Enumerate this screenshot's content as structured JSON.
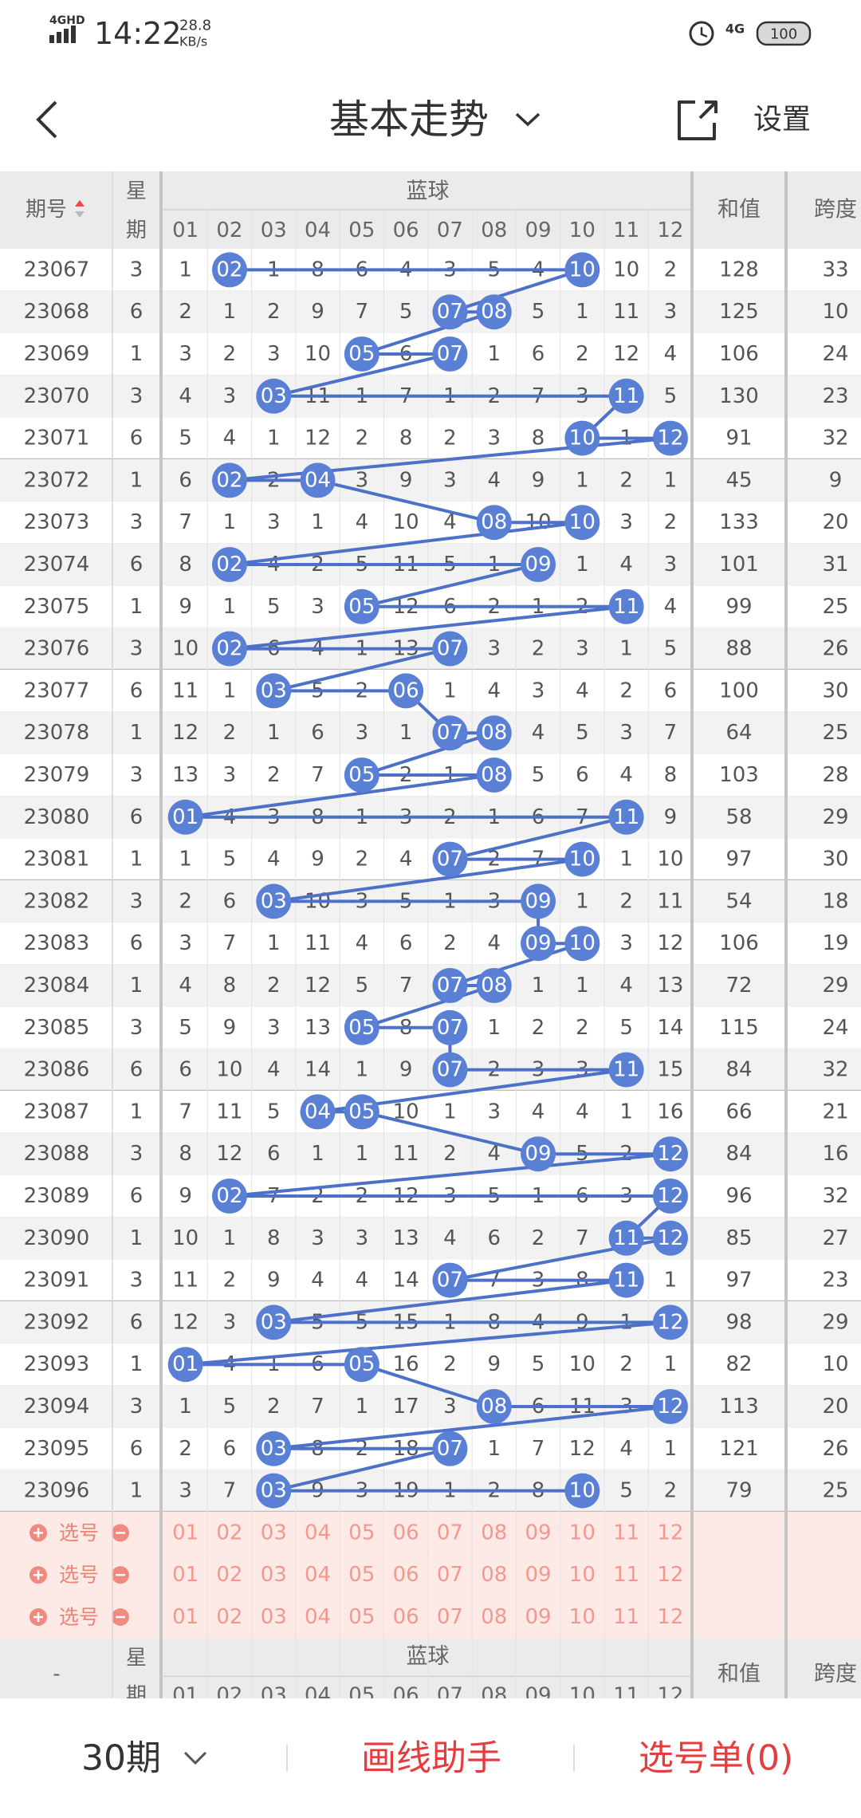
{
  "status_bar": {
    "network": "4GHD",
    "time": "14:22",
    "speed": "28.8",
    "speed_unit": "KB/s",
    "network_right": "4G",
    "battery": "100"
  },
  "header": {
    "title": "基本走势",
    "settings": "设置"
  },
  "table": {
    "header": {
      "period": "期号",
      "weekday": [
        "星",
        "期"
      ],
      "blue": "蓝球",
      "sum": "和值",
      "span": "跨度"
    },
    "ball_columns": [
      "01",
      "02",
      "03",
      "04",
      "05",
      "06",
      "07",
      "08",
      "09",
      "10",
      "11",
      "12"
    ],
    "rows": [
      {
        "period": "23067",
        "weekday": 3,
        "cells": [
          1,
          "02",
          1,
          8,
          6,
          4,
          3,
          5,
          4,
          "10",
          10,
          2
        ],
        "sum": 128,
        "span": 33
      },
      {
        "period": "23068",
        "weekday": 6,
        "cells": [
          2,
          1,
          2,
          9,
          7,
          5,
          "07",
          "08",
          5,
          1,
          11,
          3
        ],
        "sum": 125,
        "span": 10
      },
      {
        "period": "23069",
        "weekday": 1,
        "cells": [
          3,
          2,
          3,
          10,
          "05",
          6,
          "07",
          1,
          6,
          2,
          12,
          4
        ],
        "sum": 106,
        "span": 24
      },
      {
        "period": "23070",
        "weekday": 3,
        "cells": [
          4,
          3,
          "03",
          11,
          1,
          7,
          1,
          2,
          7,
          3,
          "11",
          5
        ],
        "sum": 130,
        "span": 23
      },
      {
        "period": "23071",
        "weekday": 6,
        "cells": [
          5,
          4,
          1,
          12,
          2,
          8,
          2,
          3,
          8,
          "10",
          1,
          "12"
        ],
        "sum": 91,
        "span": 32
      },
      {
        "period": "23072",
        "weekday": 1,
        "cells": [
          6,
          "02",
          2,
          "04",
          3,
          9,
          3,
          4,
          9,
          1,
          2,
          1
        ],
        "sum": 45,
        "span": 9
      },
      {
        "period": "23073",
        "weekday": 3,
        "cells": [
          7,
          1,
          3,
          1,
          4,
          10,
          4,
          "08",
          10,
          "10",
          3,
          2
        ],
        "sum": 133,
        "span": 20
      },
      {
        "period": "23074",
        "weekday": 6,
        "cells": [
          8,
          "02",
          4,
          2,
          5,
          11,
          5,
          1,
          "09",
          1,
          4,
          3
        ],
        "sum": 101,
        "span": 31
      },
      {
        "period": "23075",
        "weekday": 1,
        "cells": [
          9,
          1,
          5,
          3,
          "05",
          12,
          6,
          2,
          1,
          2,
          "11",
          4
        ],
        "sum": 99,
        "span": 25
      },
      {
        "period": "23076",
        "weekday": 3,
        "cells": [
          10,
          "02",
          6,
          4,
          1,
          13,
          "07",
          3,
          2,
          3,
          1,
          5
        ],
        "sum": 88,
        "span": 26
      },
      {
        "period": "23077",
        "weekday": 6,
        "cells": [
          11,
          1,
          "03",
          5,
          2,
          "06",
          1,
          4,
          3,
          4,
          2,
          6
        ],
        "sum": 100,
        "span": 30
      },
      {
        "period": "23078",
        "weekday": 1,
        "cells": [
          12,
          2,
          1,
          6,
          3,
          1,
          "07",
          "08",
          4,
          5,
          3,
          7
        ],
        "sum": 64,
        "span": 25
      },
      {
        "period": "23079",
        "weekday": 3,
        "cells": [
          13,
          3,
          2,
          7,
          "05",
          2,
          1,
          "08",
          5,
          6,
          4,
          8
        ],
        "sum": 103,
        "span": 28
      },
      {
        "period": "23080",
        "weekday": 6,
        "cells": [
          "01",
          4,
          3,
          8,
          1,
          3,
          2,
          1,
          6,
          7,
          "11",
          9
        ],
        "sum": 58,
        "span": 29
      },
      {
        "period": "23081",
        "weekday": 1,
        "cells": [
          1,
          5,
          4,
          9,
          2,
          4,
          "07",
          2,
          7,
          "10",
          1,
          10
        ],
        "sum": 97,
        "span": 30
      },
      {
        "period": "23082",
        "weekday": 3,
        "cells": [
          2,
          6,
          "03",
          10,
          3,
          5,
          1,
          3,
          "09",
          1,
          2,
          11
        ],
        "sum": 54,
        "span": 18
      },
      {
        "period": "23083",
        "weekday": 6,
        "cells": [
          3,
          7,
          1,
          11,
          4,
          6,
          2,
          4,
          "09",
          "10",
          3,
          12
        ],
        "sum": 106,
        "span": 19
      },
      {
        "period": "23084",
        "weekday": 1,
        "cells": [
          4,
          8,
          2,
          12,
          5,
          7,
          "07",
          "08",
          1,
          1,
          4,
          13
        ],
        "sum": 72,
        "span": 29
      },
      {
        "period": "23085",
        "weekday": 3,
        "cells": [
          5,
          9,
          3,
          13,
          "05",
          8,
          "07",
          1,
          2,
          2,
          5,
          14
        ],
        "sum": 115,
        "span": 24
      },
      {
        "period": "23086",
        "weekday": 6,
        "cells": [
          6,
          10,
          4,
          14,
          1,
          9,
          "07",
          2,
          3,
          3,
          "11",
          15
        ],
        "sum": 84,
        "span": 32
      },
      {
        "period": "23087",
        "weekday": 1,
        "cells": [
          7,
          11,
          5,
          "04",
          "05",
          10,
          1,
          3,
          4,
          4,
          1,
          16
        ],
        "sum": 66,
        "span": 21
      },
      {
        "period": "23088",
        "weekday": 3,
        "cells": [
          8,
          12,
          6,
          1,
          1,
          11,
          2,
          4,
          "09",
          5,
          2,
          "12"
        ],
        "sum": 84,
        "span": 16
      },
      {
        "period": "23089",
        "weekday": 6,
        "cells": [
          9,
          "02",
          7,
          2,
          2,
          12,
          3,
          5,
          1,
          6,
          3,
          "12"
        ],
        "sum": 96,
        "span": 32
      },
      {
        "period": "23090",
        "weekday": 1,
        "cells": [
          10,
          1,
          8,
          3,
          3,
          13,
          4,
          6,
          2,
          7,
          "11",
          "12"
        ],
        "sum": 85,
        "span": 27
      },
      {
        "period": "23091",
        "weekday": 3,
        "cells": [
          11,
          2,
          9,
          4,
          4,
          14,
          "07",
          7,
          3,
          8,
          "11",
          1
        ],
        "sum": 97,
        "span": 23
      },
      {
        "period": "23092",
        "weekday": 6,
        "cells": [
          12,
          3,
          "03",
          5,
          5,
          15,
          1,
          8,
          4,
          9,
          1,
          "12"
        ],
        "sum": 98,
        "span": 29
      },
      {
        "period": "23093",
        "weekday": 1,
        "cells": [
          "01",
          4,
          1,
          6,
          "05",
          16,
          2,
          9,
          5,
          10,
          2,
          1
        ],
        "sum": 82,
        "span": 10
      },
      {
        "period": "23094",
        "weekday": 3,
        "cells": [
          1,
          5,
          2,
          7,
          1,
          17,
          3,
          "08",
          6,
          11,
          3,
          "12"
        ],
        "sum": 113,
        "span": 20
      },
      {
        "period": "23095",
        "weekday": 6,
        "cells": [
          2,
          6,
          "03",
          8,
          2,
          18,
          "07",
          1,
          7,
          12,
          4,
          1
        ],
        "sum": 121,
        "span": 26
      },
      {
        "period": "23096",
        "weekday": 1,
        "cells": [
          3,
          7,
          "03",
          9,
          3,
          19,
          1,
          2,
          8,
          "10",
          5,
          2
        ],
        "sum": 79,
        "span": 25
      }
    ],
    "pick_rows": [
      {
        "label": "选号"
      },
      {
        "label": "选号"
      },
      {
        "label": "选号"
      }
    ],
    "footer_period": "-"
  },
  "bottom_bar": {
    "periods": "30期",
    "draw_helper": "画线助手",
    "pick_list": "选号单(0)"
  }
}
